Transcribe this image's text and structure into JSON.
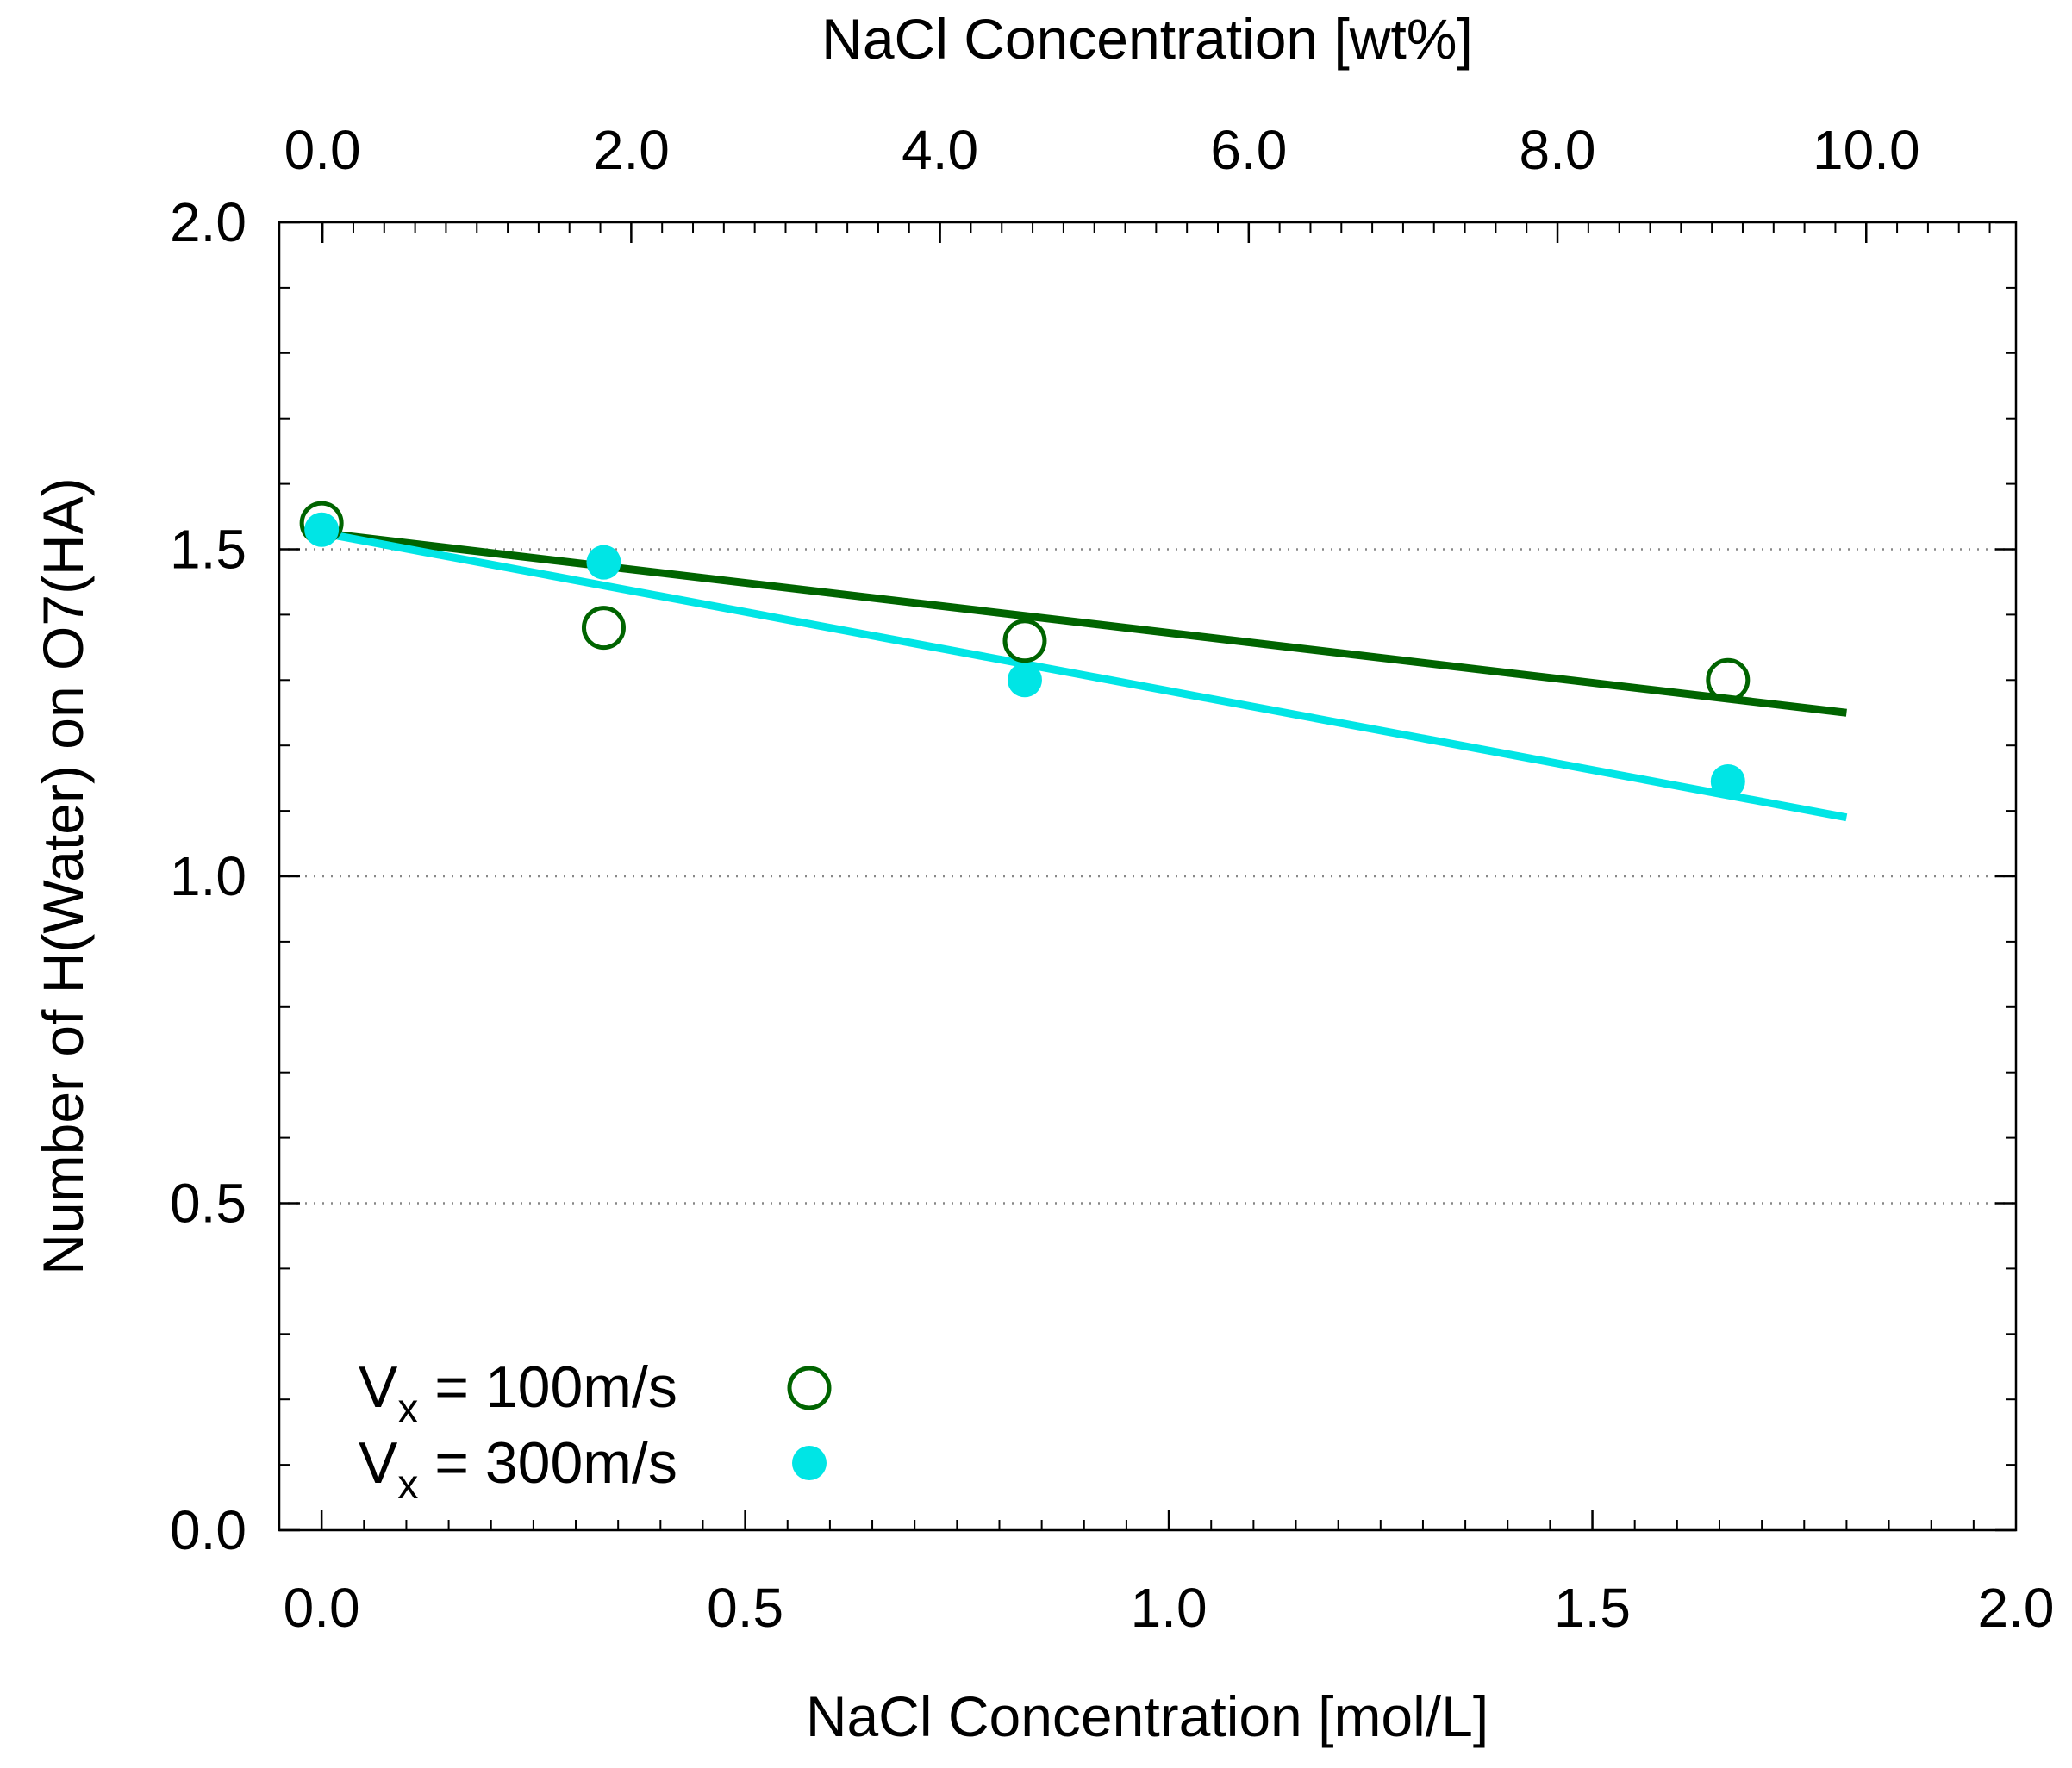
{
  "chart_data": {
    "type": "scatter",
    "title": "",
    "xlabel": "NaCl Concentration  [mol/L]",
    "x2label": "NaCl Concentration  [wt%]",
    "ylabel": "Number of H(Water) on O7(HA)",
    "xlim": [
      -0.05,
      2.0
    ],
    "ylim": [
      0.0,
      2.0
    ],
    "x2lim": [
      -0.28,
      10.97
    ],
    "x_ticks": [
      0.0,
      0.5,
      1.0,
      1.5,
      2.0
    ],
    "x_tick_labels": [
      "0.0",
      "0.5",
      "1.0",
      "1.5",
      "2.0"
    ],
    "x2_ticks": [
      0.0,
      2.0,
      4.0,
      6.0,
      8.0,
      10.0
    ],
    "x2_tick_labels": [
      "0.0",
      "2.0",
      "4.0",
      "6.0",
      "8.0",
      "10.0"
    ],
    "y_ticks": [
      0.0,
      0.5,
      1.0,
      1.5,
      2.0
    ],
    "y_tick_labels": [
      "0.0",
      "0.5",
      "1.0",
      "1.5",
      "2.0"
    ],
    "grid": "horizontal dotted",
    "legend_position": "bottom-left",
    "series": [
      {
        "name": "V",
        "subscript": "x",
        "suffix": " = 100m/s",
        "color": "#006400",
        "marker": "open-circle",
        "x": [
          0.0,
          0.333,
          0.83,
          1.66
        ],
        "y": [
          1.54,
          1.38,
          1.36,
          1.3
        ],
        "fit": {
          "x": [
            0.0,
            1.8
          ],
          "y": [
            1.525,
            1.25
          ]
        }
      },
      {
        "name": "V",
        "subscript": "x",
        "suffix": " = 300m/s",
        "color": "#00e5e5",
        "marker": "filled-circle",
        "x": [
          0.0,
          0.333,
          0.83,
          1.66
        ],
        "y": [
          1.53,
          1.48,
          1.3,
          1.145
        ],
        "fit": {
          "x": [
            0.0,
            1.8
          ],
          "y": [
            1.525,
            1.09
          ]
        }
      }
    ]
  }
}
